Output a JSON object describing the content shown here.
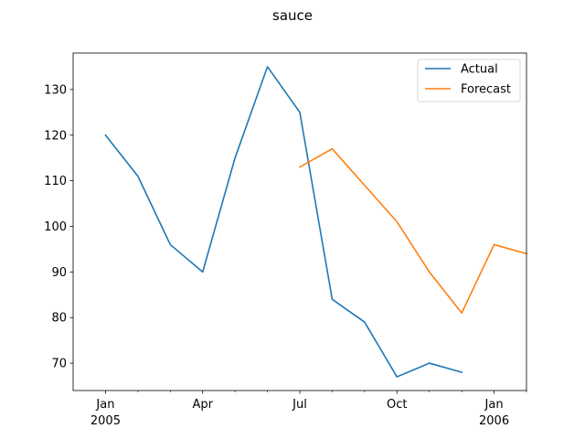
{
  "chart_data": {
    "type": "line",
    "title": "sauce",
    "xlabel": "",
    "ylabel": "",
    "x_type": "month",
    "xlim": [
      "2004-12",
      "2006-02"
    ],
    "ylim": [
      64,
      138
    ],
    "y_ticks": [
      70,
      80,
      90,
      100,
      110,
      120,
      130
    ],
    "x_major_ticks": [
      {
        "x": "2005-01",
        "label": "Jan",
        "sublabel": "2005"
      },
      {
        "x": "2005-04",
        "label": "Apr",
        "sublabel": ""
      },
      {
        "x": "2005-07",
        "label": "Jul",
        "sublabel": ""
      },
      {
        "x": "2005-10",
        "label": "Oct",
        "sublabel": ""
      },
      {
        "x": "2006-01",
        "label": "Jan",
        "sublabel": "2006"
      }
    ],
    "x_minor_ticks": [
      "2005-02",
      "2005-03",
      "2005-05",
      "2005-06",
      "2005-08",
      "2005-09",
      "2005-11",
      "2005-12",
      "2006-02"
    ],
    "legend": {
      "position": "top-right"
    },
    "grid": false,
    "series": [
      {
        "name": "Actual",
        "color": "#1f77b4",
        "x": [
          "2005-01",
          "2005-02",
          "2005-03",
          "2005-04",
          "2005-05",
          "2005-06",
          "2005-07",
          "2005-08",
          "2005-09",
          "2005-10",
          "2005-11",
          "2005-12"
        ],
        "values": [
          120,
          111,
          96,
          90,
          115,
          135,
          125,
          84,
          79,
          67,
          70,
          68
        ]
      },
      {
        "name": "Forecast",
        "color": "#ff7f0e",
        "x": [
          "2005-07",
          "2005-08",
          "2005-09",
          "2005-10",
          "2005-11",
          "2005-12",
          "2006-01",
          "2006-02"
        ],
        "values": [
          113,
          117,
          109,
          101,
          90,
          81,
          96,
          94
        ]
      }
    ]
  }
}
